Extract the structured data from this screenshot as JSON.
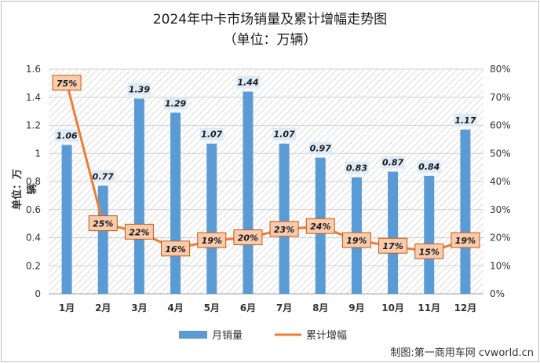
{
  "chart_data": {
    "type": "bar",
    "title": "2024年中卡市场销量及累计增幅走势图",
    "subtitle": "（单位：万辆）",
    "ylabel": "单位：万辆",
    "categories": [
      "1月",
      "2月",
      "3月",
      "4月",
      "5月",
      "6月",
      "7月",
      "8月",
      "9月",
      "10月",
      "11月",
      "12月"
    ],
    "series": [
      {
        "name": "月销量",
        "type": "bar",
        "axis": "left",
        "color": "#5b9bd5",
        "values": [
          1.06,
          0.77,
          1.39,
          1.29,
          1.07,
          1.44,
          1.07,
          0.97,
          0.83,
          0.87,
          0.84,
          1.17
        ],
        "labels": [
          "1.06",
          "0.77",
          "1.39",
          "1.29",
          "1.07",
          "1.44",
          "1.07",
          "0.97",
          "0.83",
          "0.87",
          "0.84",
          "1.17"
        ]
      },
      {
        "name": "累计增幅",
        "type": "line",
        "axis": "right",
        "color": "#ed7d31",
        "values": [
          75,
          25,
          22,
          16,
          19,
          20,
          23,
          24,
          19,
          17,
          15,
          19
        ],
        "labels": [
          "75%",
          "25%",
          "22%",
          "16%",
          "19%",
          "20%",
          "23%",
          "24%",
          "19%",
          "17%",
          "15%",
          "19%"
        ]
      }
    ],
    "ylim": [
      0,
      1.6
    ],
    "y_ticks": [
      "0",
      "0.2",
      "0.4",
      "0.6",
      "0.8",
      "1",
      "1.2",
      "1.4",
      "1.6"
    ],
    "y2lim": [
      0,
      80
    ],
    "y2_ticks": [
      "0%",
      "10%",
      "20%",
      "30%",
      "40%",
      "50%",
      "60%",
      "70%",
      "80%"
    ],
    "legend_position": "bottom"
  },
  "credit": "制图:第一商用车网 cvworld.cn"
}
